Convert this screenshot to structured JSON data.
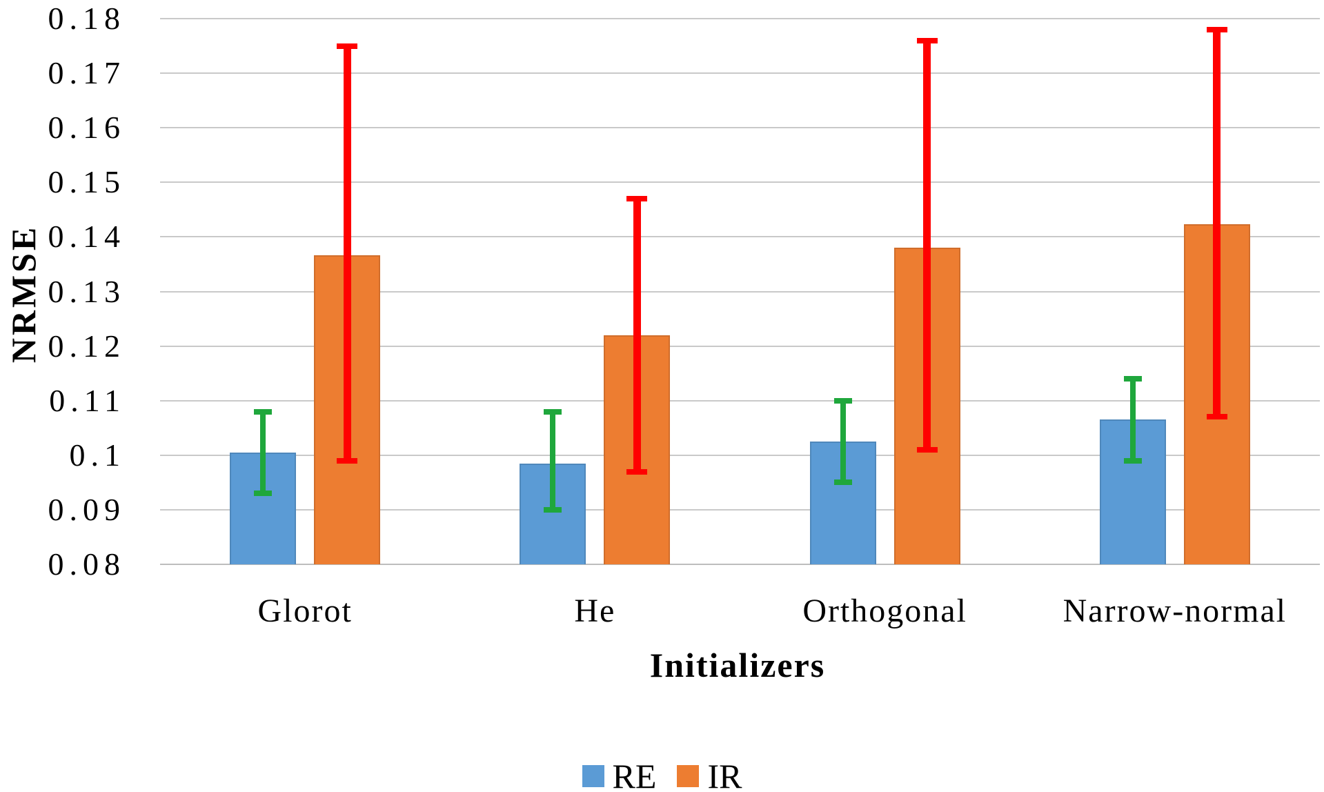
{
  "chart_data": {
    "type": "bar",
    "title": "",
    "xlabel": "Initializers",
    "ylabel": "NRMSE",
    "categories": [
      "Glorot",
      "He",
      "Orthogonal",
      "Narrow-normal"
    ],
    "series": [
      {
        "name": "RE",
        "color": "#5B9BD5",
        "error_color": "#1FA73C",
        "values": [
          0.1005,
          0.0985,
          0.1025,
          0.1065
        ],
        "error_low": [
          0.093,
          0.09,
          0.095,
          0.099
        ],
        "error_high": [
          0.108,
          0.108,
          0.11,
          0.114
        ]
      },
      {
        "name": "IR",
        "color": "#ED7D31",
        "error_color": "#FF0000",
        "values": [
          0.1367,
          0.122,
          0.138,
          0.1423
        ],
        "error_low": [
          0.099,
          0.097,
          0.101,
          0.107
        ],
        "error_high": [
          0.175,
          0.147,
          0.176,
          0.178
        ]
      }
    ],
    "ylim": [
      0.08,
      0.18
    ],
    "ytick_step": 0.01,
    "ytick_labels": [
      "0.08",
      "0.09",
      "0.1",
      "0.11",
      "0.12",
      "0.13",
      "0.14",
      "0.15",
      "0.16",
      "0.17",
      "0.18"
    ],
    "grid": true,
    "legend_position": "bottom",
    "background": "#ffffff",
    "gridline_color": "#c9c9c9"
  }
}
